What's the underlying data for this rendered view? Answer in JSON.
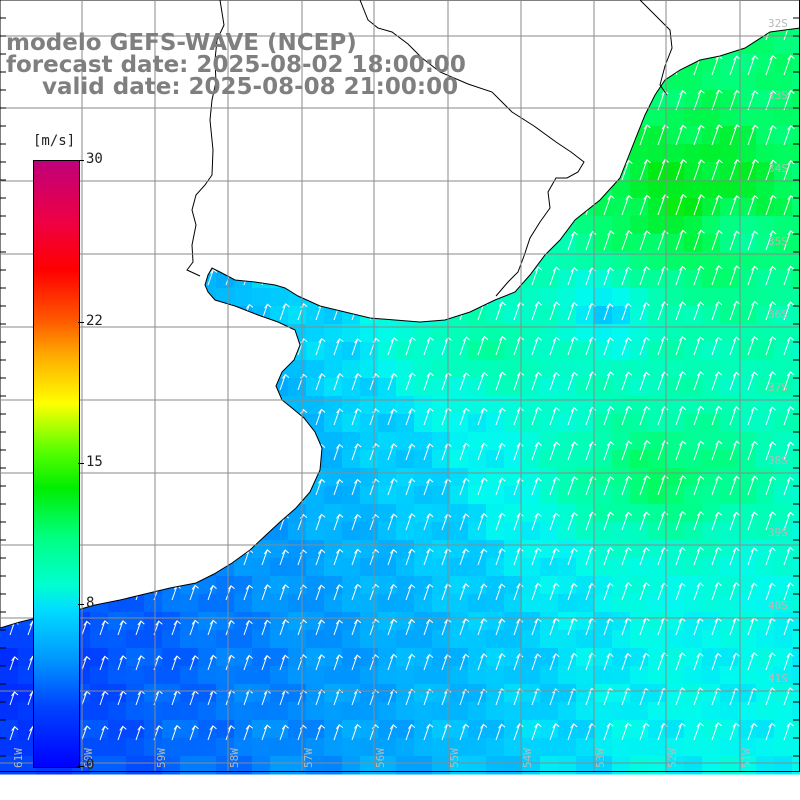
{
  "title": {
    "line1": "modelo GEFS-WAVE (NCEP)",
    "line2": "forecast date: 2025-08-02 18:00:00",
    "line3": "valid date: 2025-08-08 21:00:00"
  },
  "colorbar": {
    "unit": "[m/s]",
    "ticks": [
      "30",
      "22",
      "15",
      "8",
      "0"
    ],
    "tick_values": [
      30,
      22,
      15,
      8,
      0
    ],
    "range": [
      0,
      30
    ]
  },
  "map": {
    "lat_labels": [
      "32S",
      "33S",
      "34S",
      "35S",
      "36S",
      "37S",
      "38S",
      "39S",
      "40S",
      "41S"
    ],
    "lon_labels": [
      "61W",
      "60W",
      "59W",
      "58W",
      "57W",
      "56W",
      "55W",
      "54W",
      "53W",
      "52W",
      "51W"
    ],
    "wind_direction": "from south-southwest"
  },
  "colors": {
    "title_text": "#7f7f7f",
    "land": "#ffffff",
    "grid": "#8a8a8a",
    "arrows": "#ffffff"
  }
}
